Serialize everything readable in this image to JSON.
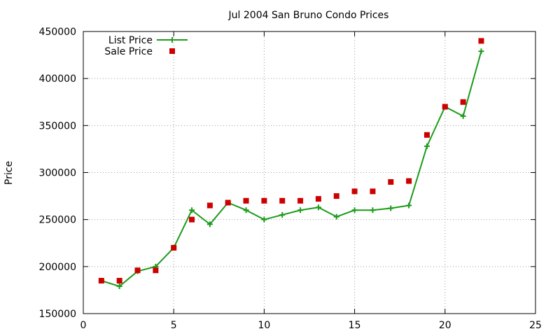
{
  "chart_data": {
    "type": "line",
    "title": "Jul 2004 San Bruno Condo Prices",
    "xlabel": "",
    "ylabel": "Price",
    "xlim": [
      0,
      25
    ],
    "ylim": [
      150000,
      450000
    ],
    "xticks": [
      "0",
      "5",
      "10",
      "15",
      "20",
      "25"
    ],
    "yticks": [
      "150000",
      "200000",
      "250000",
      "300000",
      "350000",
      "400000",
      "450000"
    ],
    "grid": true,
    "legend_position": "top-left",
    "series": [
      {
        "name": "List Price",
        "style": "lines+points",
        "color": "#1a9b1a",
        "marker": "plus",
        "x": [
          1,
          2,
          3,
          4,
          5,
          6,
          7,
          8,
          9,
          10,
          11,
          12,
          13,
          14,
          15,
          16,
          17,
          18,
          19,
          20,
          21,
          22
        ],
        "values": [
          185000,
          179000,
          195000,
          200000,
          220000,
          260000,
          245000,
          268000,
          260000,
          250000,
          255000,
          260000,
          263000,
          253000,
          260000,
          260000,
          262000,
          265000,
          328000,
          370000,
          360000,
          429000
        ]
      },
      {
        "name": "Sale Price",
        "style": "points",
        "color": "#cc0000",
        "marker": "square",
        "x": [
          1,
          2,
          3,
          4,
          5,
          6,
          7,
          8,
          9,
          10,
          11,
          12,
          13,
          14,
          15,
          16,
          17,
          18,
          19,
          20,
          21,
          22
        ],
        "values": [
          185000,
          185000,
          196000,
          196000,
          220000,
          250000,
          265000,
          268000,
          270000,
          270000,
          270000,
          270000,
          272000,
          275000,
          280000,
          280000,
          290000,
          291000,
          340000,
          370000,
          375000,
          440000
        ]
      }
    ]
  }
}
